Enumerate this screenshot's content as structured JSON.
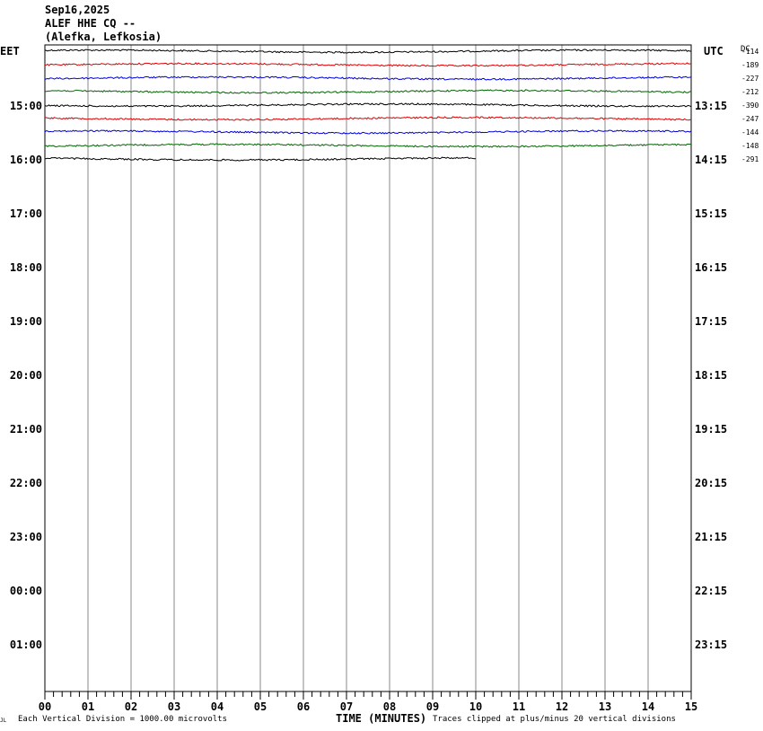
{
  "header": {
    "date": "Sep16,2025",
    "station": "ALEF HHE CQ --",
    "location": "(Alefka, Lefkosia)"
  },
  "left_zone_label": "EET",
  "right_zone_label": "UTC",
  "dc_label": "DC",
  "colors": {
    "trace_cycle": [
      "#000000",
      "#dd0000",
      "#0000dd",
      "#006600"
    ],
    "grid": "#888888",
    "frame": "#000000"
  },
  "footer": {
    "x_axis_label": "TIME (MINUTES)",
    "scale_note": "Each Vertical Division = 1000.00 microvolts",
    "clip_note": "Traces clipped at plus/minus 20 vertical divisions",
    "corner_mark": "JL"
  },
  "chart_data": {
    "type": "line",
    "title": "ALEF HHE CQ --",
    "xlabel": "TIME (MINUTES)",
    "xlim": [
      0,
      15
    ],
    "x_ticks": [
      "00",
      "01",
      "02",
      "03",
      "04",
      "05",
      "06",
      "07",
      "08",
      "09",
      "10",
      "11",
      "12",
      "13",
      "14",
      "15"
    ],
    "left_time_labels": [
      "15:00",
      "16:00",
      "17:00",
      "18:00",
      "19:00",
      "20:00",
      "21:00",
      "22:00",
      "23:00",
      "00:00",
      "01:00"
    ],
    "right_time_labels": [
      "13:15",
      "14:15",
      "15:15",
      "16:15",
      "17:15",
      "18:15",
      "19:15",
      "20:15",
      "21:15",
      "22:15",
      "23:15"
    ],
    "traces_per_hour": 4,
    "first_trace_index": 0,
    "dc_offsets": [
      "-114",
      "-189",
      "-227",
      "-212",
      "-390",
      "-247",
      "-144",
      "-148",
      "-291"
    ],
    "series": [
      {
        "trace_index": 0,
        "duration_minutes": 15
      },
      {
        "trace_index": 1,
        "duration_minutes": 15
      },
      {
        "trace_index": 2,
        "duration_minutes": 15
      },
      {
        "trace_index": 3,
        "duration_minutes": 15
      },
      {
        "trace_index": 4,
        "duration_minutes": 15
      },
      {
        "trace_index": 5,
        "duration_minutes": 15
      },
      {
        "trace_index": 6,
        "duration_minutes": 15
      },
      {
        "trace_index": 7,
        "duration_minutes": 15
      },
      {
        "trace_index": 8,
        "duration_minutes": 10
      }
    ]
  }
}
